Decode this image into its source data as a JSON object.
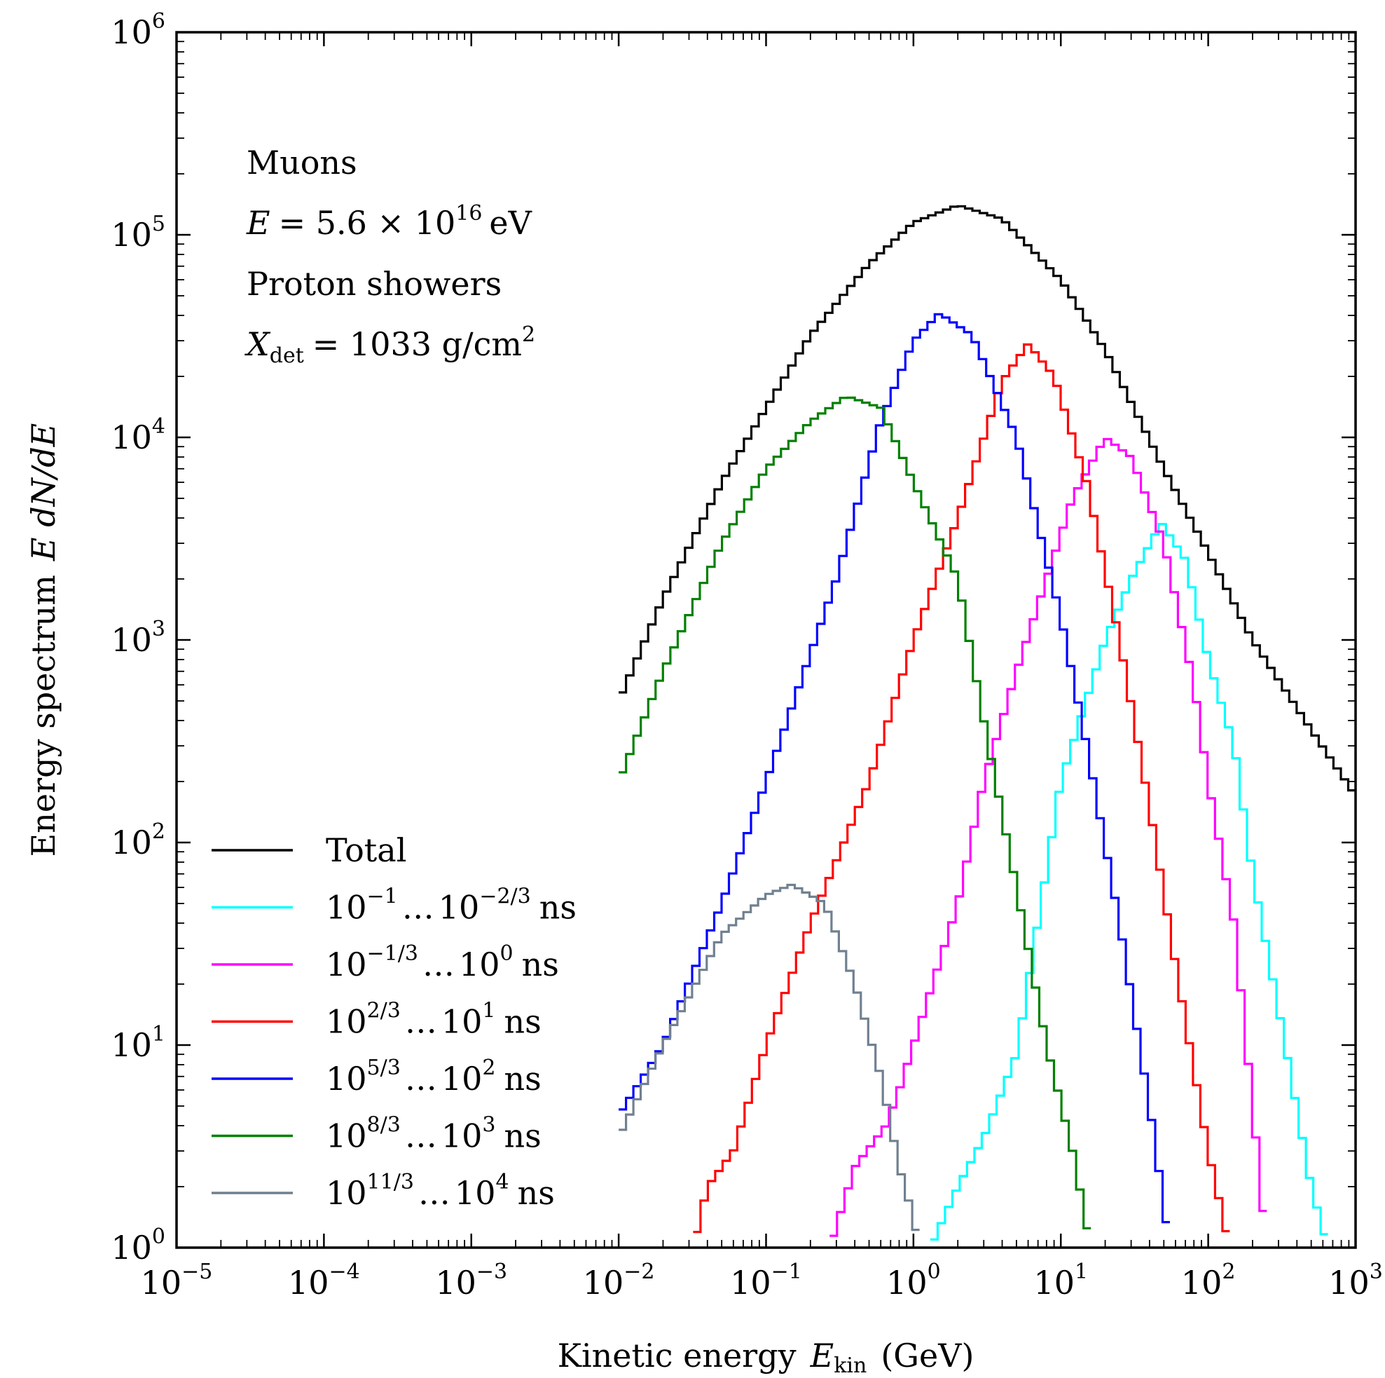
{
  "chart_data": {
    "type": "line",
    "drawstyle": "steps",
    "xscale": "log",
    "yscale": "log",
    "xlim": [
      1e-05,
      1000
    ],
    "ylim": [
      1,
      1000000
    ],
    "x_ticks": [
      {
        "value": 1e-05,
        "base": "10",
        "exp": "−5"
      },
      {
        "value": 0.0001,
        "base": "10",
        "exp": "−4"
      },
      {
        "value": 0.001,
        "base": "10",
        "exp": "−3"
      },
      {
        "value": 0.01,
        "base": "10",
        "exp": "−2"
      },
      {
        "value": 0.1,
        "base": "10",
        "exp": "−1"
      },
      {
        "value": 1,
        "base": "10",
        "exp": "0"
      },
      {
        "value": 10,
        "base": "10",
        "exp": "1"
      },
      {
        "value": 100,
        "base": "10",
        "exp": "2"
      },
      {
        "value": 1000,
        "base": "10",
        "exp": "3"
      }
    ],
    "y_ticks": [
      {
        "value": 1,
        "base": "10",
        "exp": "0"
      },
      {
        "value": 10,
        "base": "10",
        "exp": "1"
      },
      {
        "value": 100,
        "base": "10",
        "exp": "2"
      },
      {
        "value": 1000,
        "base": "10",
        "exp": "3"
      },
      {
        "value": 10000,
        "base": "10",
        "exp": "4"
      },
      {
        "value": 100000,
        "base": "10",
        "exp": "5"
      },
      {
        "value": 1000000,
        "base": "10",
        "exp": "6"
      }
    ],
    "xlabel": {
      "prefix": "Kinetic energy",
      "var": "E",
      "sub": "kin",
      "unit": "(GeV)"
    },
    "ylabel": {
      "prefix": "Energy spectrum",
      "expr": "E dN/dE"
    },
    "annotations": {
      "line1": "Muons",
      "line2": {
        "lhs": "E",
        "eq": "= 5.6 × 10",
        "exp": "16",
        "unit": "eV"
      },
      "line3": "Proton showers",
      "line4": {
        "var": "X",
        "sub": "det",
        "eq": "= 1033 g/cm",
        "exp": "2"
      }
    },
    "legend_position": "lower-left",
    "series": [
      {
        "name": "Total",
        "color": "#000000",
        "peak_x": 2.0,
        "peak_y": 140000,
        "xmin": 0.01,
        "xmax": 1000,
        "legend": {
          "plain": "Total"
        }
      },
      {
        "name": "10^-1 ... 10^-2/3 ns",
        "color": "#00ffff",
        "peak_x": 48,
        "peak_y": 3800,
        "xmin": 1.3,
        "xmax": 650,
        "legend": {
          "a": "10",
          "ae": "−1",
          "b": "10",
          "be": "−2/3",
          "unit": "ns"
        }
      },
      {
        "name": "10^-1/3 ... 10^0 ns",
        "color": "#ff00ff",
        "peak_x": 20,
        "peak_y": 10000,
        "xmin": 0.27,
        "xmax": 250,
        "legend": {
          "a": "10",
          "ae": "−1/3",
          "b": "10",
          "be": "0",
          "unit": "ns"
        }
      },
      {
        "name": "10^2/3 ... 10^1 ns",
        "color": "#ff0000",
        "peak_x": 6.0,
        "peak_y": 29000,
        "xmin": 0.032,
        "xmax": 140,
        "legend": {
          "a": "10",
          "ae": "2/3",
          "b": "10",
          "be": "1",
          "unit": "ns"
        }
      },
      {
        "name": "10^5/3 ... 10^2 ns",
        "color": "#0000ff",
        "peak_x": 1.5,
        "peak_y": 41000,
        "xmin": 0.01,
        "xmax": 55,
        "legend": {
          "a": "10",
          "ae": "5/3",
          "b": "10",
          "be": "2",
          "unit": "ns"
        }
      },
      {
        "name": "10^8/3 ... 10^3 ns",
        "color": "#008000",
        "peak_x": 0.35,
        "peak_y": 16000,
        "xmin": 0.01,
        "xmax": 16,
        "legend": {
          "a": "10",
          "ae": "8/3",
          "b": "10",
          "be": "3",
          "unit": "ns"
        }
      },
      {
        "name": "10^11/3 ... 10^4 ns",
        "color": "#708090",
        "peak_x": 0.15,
        "peak_y": 62,
        "xmin": 0.01,
        "xmax": 1.1,
        "legend": {
          "a": "10",
          "ae": "11/3",
          "b": "10",
          "be": "4",
          "unit": "ns"
        }
      }
    ],
    "series_points": {
      "Total": [
        [
          0.01,
          500
        ],
        [
          0.02,
          1600
        ],
        [
          0.05,
          6000
        ],
        [
          0.1,
          14000
        ],
        [
          0.2,
          32000
        ],
        [
          0.5,
          72000
        ],
        [
          1,
          115000
        ],
        [
          2,
          140000
        ],
        [
          4,
          120000
        ],
        [
          10,
          60000
        ],
        [
          20,
          27000
        ],
        [
          50,
          7000
        ],
        [
          100,
          2700
        ],
        [
          200,
          1000
        ],
        [
          500,
          360
        ],
        [
          1000,
          170
        ]
      ],
      "10^-1 ... 10^-2/3 ns": [
        [
          1.3,
          1
        ],
        [
          2,
          2
        ],
        [
          3,
          3.5
        ],
        [
          5,
          9
        ],
        [
          10,
          200
        ],
        [
          20,
          1000
        ],
        [
          30,
          2000
        ],
        [
          48,
          3800
        ],
        [
          70,
          2500
        ],
        [
          100,
          800
        ],
        [
          150,
          300
        ],
        [
          200,
          70
        ],
        [
          300,
          15
        ],
        [
          500,
          2
        ],
        [
          650,
          1
        ]
      ],
      "10^-1/3 ... 10^0 ns": [
        [
          0.27,
          1
        ],
        [
          0.4,
          2.5
        ],
        [
          0.65,
          4
        ],
        [
          0.8,
          6
        ],
        [
          1,
          10
        ],
        [
          2,
          50
        ],
        [
          3,
          200
        ],
        [
          5,
          700
        ],
        [
          8,
          2000
        ],
        [
          12,
          5000
        ],
        [
          20,
          10000
        ],
        [
          30,
          8000
        ],
        [
          50,
          3000
        ],
        [
          80,
          600
        ],
        [
          100,
          200
        ],
        [
          150,
          40
        ],
        [
          200,
          5
        ],
        [
          250,
          1
        ]
      ],
      "10^2/3 ... 10^1 ns": [
        [
          0.032,
          1
        ],
        [
          0.04,
          2
        ],
        [
          0.06,
          3
        ],
        [
          0.1,
          10
        ],
        [
          0.2,
          40
        ],
        [
          0.5,
          200
        ],
        [
          1,
          1000
        ],
        [
          2,
          4000
        ],
        [
          4,
          19000
        ],
        [
          6,
          29000
        ],
        [
          9,
          20000
        ],
        [
          15,
          6000
        ],
        [
          25,
          1000
        ],
        [
          40,
          150
        ],
        [
          60,
          25
        ],
        [
          100,
          3
        ],
        [
          140,
          1
        ]
      ],
      "10^5/3 ... 10^2 ns": [
        [
          0.01,
          4.5
        ],
        [
          0.02,
          10
        ],
        [
          0.05,
          50
        ],
        [
          0.1,
          200
        ],
        [
          0.3,
          2000
        ],
        [
          0.6,
          12000
        ],
        [
          1,
          30000
        ],
        [
          1.5,
          41000
        ],
        [
          2.5,
          32000
        ],
        [
          5,
          10000
        ],
        [
          10,
          1300
        ],
        [
          15,
          300
        ],
        [
          25,
          40
        ],
        [
          40,
          5
        ],
        [
          55,
          1
        ]
      ],
      "10^8/3 ... 10^3 ns": [
        [
          0.01,
          200
        ],
        [
          0.02,
          700
        ],
        [
          0.05,
          3000
        ],
        [
          0.1,
          7000
        ],
        [
          0.2,
          12000
        ],
        [
          0.35,
          16000
        ],
        [
          0.6,
          14000
        ],
        [
          1,
          6000
        ],
        [
          2,
          2000
        ],
        [
          3,
          400
        ],
        [
          5,
          60
        ],
        [
          8,
          10
        ],
        [
          12,
          3
        ],
        [
          16,
          1
        ]
      ],
      "10^11/3 ... 10^4 ns": [
        [
          0.01,
          3.5
        ],
        [
          0.02,
          10
        ],
        [
          0.05,
          35
        ],
        [
          0.1,
          55
        ],
        [
          0.15,
          62
        ],
        [
          0.25,
          50
        ],
        [
          0.4,
          20
        ],
        [
          0.6,
          7
        ],
        [
          0.8,
          2.5
        ],
        [
          1.0,
          1.4
        ],
        [
          1.1,
          1
        ]
      ]
    }
  }
}
